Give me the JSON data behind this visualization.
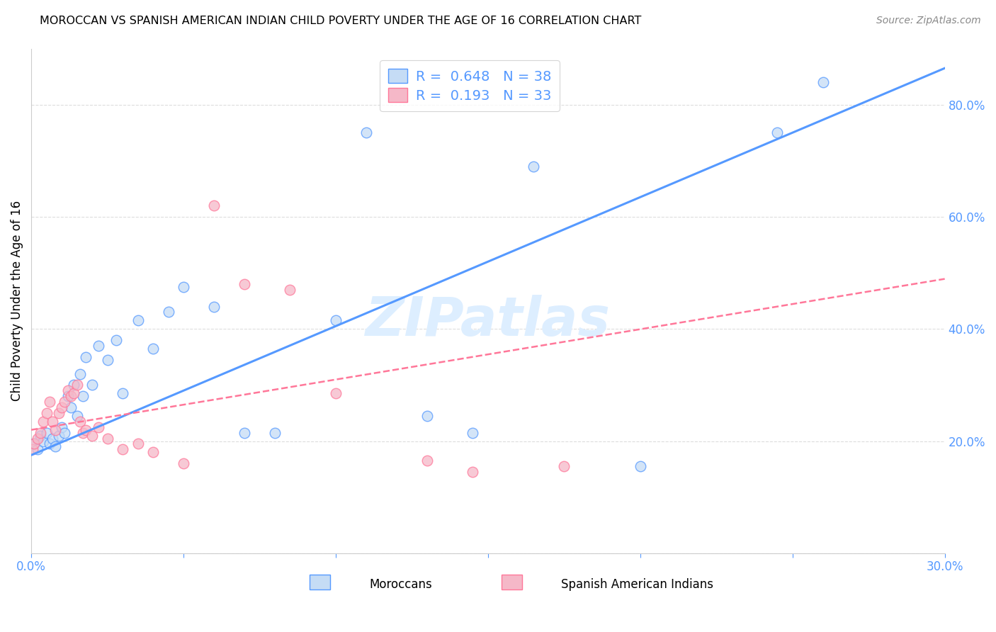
{
  "title": "MOROCCAN VS SPANISH AMERICAN INDIAN CHILD POVERTY UNDER THE AGE OF 16 CORRELATION CHART",
  "source": "Source: ZipAtlas.com",
  "ylabel": "Child Poverty Under the Age of 16",
  "xlim": [
    0.0,
    0.3
  ],
  "ylim": [
    0.0,
    0.9
  ],
  "xticks": [
    0.0,
    0.05,
    0.1,
    0.15,
    0.2,
    0.25,
    0.3
  ],
  "yticks": [
    0.0,
    0.2,
    0.4,
    0.6,
    0.8
  ],
  "ytick_labels": [
    "",
    "20.0%",
    "40.0%",
    "60.0%",
    "80.0%"
  ],
  "xtick_labels": [
    "0.0%",
    "",
    "",
    "",
    "",
    "",
    "30.0%"
  ],
  "legend_r1": "0.648",
  "legend_n1": "38",
  "legend_r2": "0.193",
  "legend_n2": "33",
  "moroccan_color": "#c5dcf5",
  "spanish_color": "#f5b8c8",
  "line1_color": "#5599ff",
  "line2_color": "#ff7799",
  "watermark_color": "#ddeeff",
  "watermark": "ZIPatlas",
  "blue_line_x0": 0.0,
  "blue_line_y0": 0.175,
  "blue_line_x1": 0.3,
  "blue_line_y1": 0.865,
  "pink_line_x0": 0.0,
  "pink_line_y0": 0.22,
  "pink_line_x1": 0.195,
  "pink_line_y1": 0.395,
  "moroccan_x": [
    0.001,
    0.002,
    0.003,
    0.004,
    0.005,
    0.006,
    0.007,
    0.008,
    0.009,
    0.01,
    0.011,
    0.012,
    0.013,
    0.014,
    0.015,
    0.016,
    0.017,
    0.018,
    0.02,
    0.022,
    0.025,
    0.028,
    0.03,
    0.035,
    0.04,
    0.045,
    0.05,
    0.06,
    0.07,
    0.08,
    0.1,
    0.11,
    0.13,
    0.145,
    0.165,
    0.2,
    0.245,
    0.26
  ],
  "moroccan_y": [
    0.195,
    0.185,
    0.21,
    0.2,
    0.215,
    0.195,
    0.205,
    0.19,
    0.21,
    0.225,
    0.215,
    0.28,
    0.26,
    0.3,
    0.245,
    0.32,
    0.28,
    0.35,
    0.3,
    0.37,
    0.345,
    0.38,
    0.285,
    0.415,
    0.365,
    0.43,
    0.475,
    0.44,
    0.215,
    0.215,
    0.415,
    0.75,
    0.245,
    0.215,
    0.69,
    0.155,
    0.75,
    0.84
  ],
  "spanish_x": [
    0.0005,
    0.001,
    0.002,
    0.003,
    0.004,
    0.005,
    0.006,
    0.007,
    0.008,
    0.009,
    0.01,
    0.011,
    0.012,
    0.013,
    0.014,
    0.015,
    0.016,
    0.017,
    0.018,
    0.02,
    0.022,
    0.025,
    0.03,
    0.035,
    0.04,
    0.05,
    0.06,
    0.07,
    0.085,
    0.1,
    0.13,
    0.145,
    0.175
  ],
  "spanish_y": [
    0.185,
    0.195,
    0.205,
    0.215,
    0.235,
    0.25,
    0.27,
    0.235,
    0.22,
    0.25,
    0.26,
    0.27,
    0.29,
    0.28,
    0.285,
    0.3,
    0.235,
    0.215,
    0.22,
    0.21,
    0.225,
    0.205,
    0.185,
    0.195,
    0.18,
    0.16,
    0.62,
    0.48,
    0.47,
    0.285,
    0.165,
    0.145,
    0.155
  ]
}
